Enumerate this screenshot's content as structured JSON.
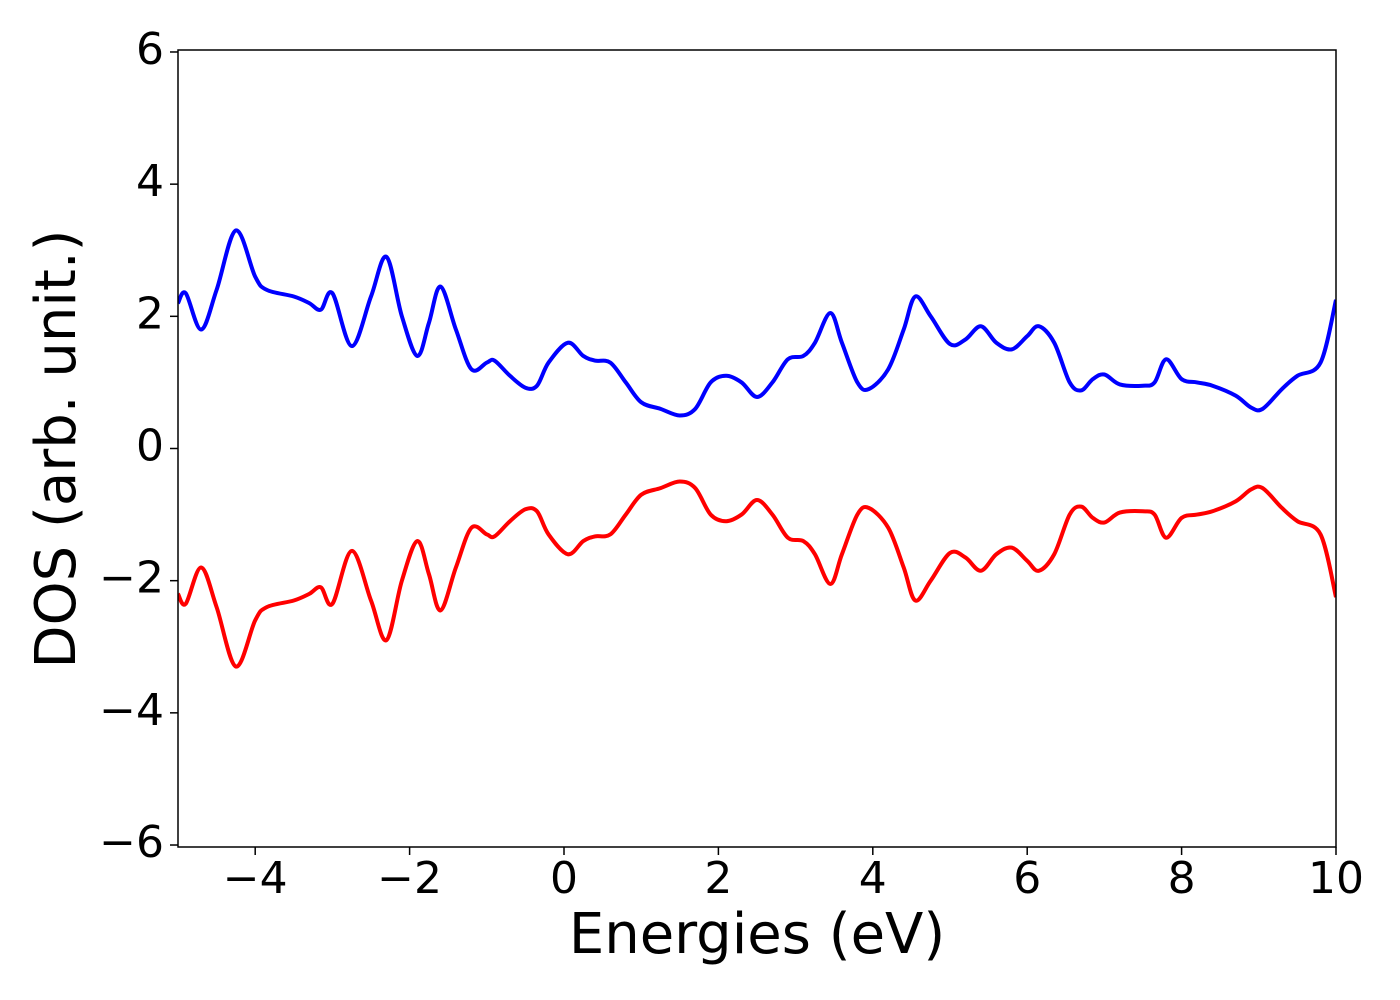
{
  "chart_data": {
    "type": "line",
    "xlabel": "Energies (eV)",
    "ylabel": "DOS (arb. unit.)",
    "xlim": [
      -5,
      10
    ],
    "xticks": [
      {
        "value": -4,
        "label": "−4"
      },
      {
        "value": -2,
        "label": "−2"
      },
      0,
      2,
      4,
      6,
      8,
      10
    ],
    "ylim": [
      -6.03,
      6.03
    ],
    "yticks": [
      {
        "value": -6,
        "label": "−6"
      },
      {
        "value": -4,
        "label": "−4"
      },
      {
        "value": -2,
        "label": "−2"
      },
      0,
      2,
      4,
      6
    ],
    "x": [
      -5,
      -4.9,
      -4.7,
      -4.5,
      -4.25,
      -4.0,
      -3.85,
      -3.5,
      -3.3,
      -3.15,
      -3.0,
      -2.75,
      -2.5,
      -2.3,
      -2.1,
      -1.9,
      -1.75,
      -1.6,
      -1.4,
      -1.2,
      -1.0,
      -0.9,
      -0.7,
      -0.5,
      -0.35,
      -0.2,
      0.05,
      0.25,
      0.4,
      0.6,
      0.8,
      1.0,
      1.25,
      1.5,
      1.7,
      1.9,
      2.1,
      2.3,
      2.5,
      2.7,
      2.9,
      3.1,
      3.25,
      3.45,
      3.6,
      3.8,
      3.95,
      4.2,
      4.4,
      4.55,
      4.75,
      5.0,
      5.2,
      5.4,
      5.6,
      5.8,
      6.0,
      6.15,
      6.35,
      6.55,
      6.7,
      6.85,
      7.0,
      7.2,
      7.5,
      7.65,
      7.8,
      8.0,
      8.2,
      8.4,
      8.7,
      8.9,
      9.05,
      9.3,
      9.5,
      9.8,
      10.0
    ],
    "series": [
      {
        "color": "#0000ff",
        "values": [
          2.2,
          2.35,
          1.8,
          2.4,
          3.3,
          2.6,
          2.4,
          2.3,
          2.2,
          2.1,
          2.35,
          1.55,
          2.3,
          2.9,
          2.0,
          1.4,
          1.9,
          2.45,
          1.8,
          1.2,
          1.3,
          1.33,
          1.1,
          0.92,
          0.95,
          1.3,
          1.6,
          1.4,
          1.33,
          1.3,
          1.0,
          0.7,
          0.6,
          0.5,
          0.6,
          1.0,
          1.1,
          1.0,
          0.78,
          1.0,
          1.35,
          1.4,
          1.6,
          2.05,
          1.6,
          1.0,
          0.9,
          1.2,
          1.8,
          2.3,
          2.0,
          1.58,
          1.65,
          1.85,
          1.6,
          1.5,
          1.7,
          1.85,
          1.6,
          1.0,
          0.88,
          1.05,
          1.12,
          0.97,
          0.95,
          1.0,
          1.35,
          1.05,
          1.0,
          0.95,
          0.8,
          0.62,
          0.6,
          0.9,
          1.1,
          1.3,
          2.25
        ]
      },
      {
        "color": "#ff0000",
        "values": [
          -2.2,
          -2.35,
          -1.8,
          -2.4,
          -3.3,
          -2.6,
          -2.4,
          -2.3,
          -2.2,
          -2.1,
          -2.35,
          -1.55,
          -2.3,
          -2.9,
          -2.0,
          -1.4,
          -1.9,
          -2.45,
          -1.8,
          -1.2,
          -1.3,
          -1.33,
          -1.1,
          -0.92,
          -0.95,
          -1.3,
          -1.6,
          -1.4,
          -1.33,
          -1.3,
          -1.0,
          -0.7,
          -0.6,
          -0.5,
          -0.6,
          -1.0,
          -1.1,
          -1.0,
          -0.78,
          -1.0,
          -1.35,
          -1.4,
          -1.6,
          -2.05,
          -1.6,
          -1.0,
          -0.9,
          -1.2,
          -1.8,
          -2.3,
          -2.0,
          -1.58,
          -1.65,
          -1.85,
          -1.6,
          -1.5,
          -1.7,
          -1.85,
          -1.6,
          -1.0,
          -0.88,
          -1.05,
          -1.12,
          -0.97,
          -0.95,
          -1.0,
          -1.35,
          -1.05,
          -1.0,
          -0.95,
          -0.8,
          -0.62,
          -0.6,
          -0.9,
          -1.1,
          -1.3,
          -2.25
        ]
      }
    ]
  }
}
